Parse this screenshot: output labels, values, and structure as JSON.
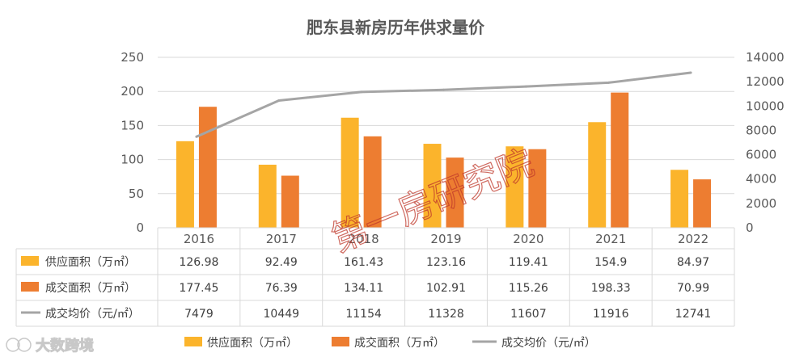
{
  "chart_data": {
    "type": "bar+line",
    "title": "肥东县新房历年供求量价",
    "categories": [
      "2016",
      "2017",
      "2018",
      "2019",
      "2020",
      "2021",
      "2022"
    ],
    "series": [
      {
        "name": "供应面积（万㎡）",
        "kind": "bar",
        "axis": "left",
        "color": "#FBB42C",
        "values": [
          126.98,
          92.49,
          161.43,
          123.16,
          119.41,
          154.9,
          84.97
        ],
        "labels": [
          "126.98",
          "92.49",
          "161.43",
          "123.16",
          "119.41",
          "154.9",
          "84.97"
        ]
      },
      {
        "name": "成交面积（万㎡）",
        "kind": "bar",
        "axis": "left",
        "color": "#ED7D31",
        "values": [
          177.45,
          76.39,
          134.11,
          102.91,
          115.26,
          198.33,
          70.99
        ],
        "labels": [
          "177.45",
          "76.39",
          "134.11",
          "102.91",
          "115.26",
          "198.33",
          "70.99"
        ]
      },
      {
        "name": "成交均价（元/㎡）",
        "kind": "line",
        "axis": "right",
        "color": "#A5A5A5",
        "values": [
          7479,
          10449,
          11154,
          11328,
          11607,
          11916,
          12741
        ],
        "labels": [
          "7479",
          "10449",
          "11154",
          "11328",
          "11607",
          "11916",
          "12741"
        ]
      }
    ],
    "y_left": {
      "min": 0,
      "max": 250,
      "ticks": [
        0,
        50,
        100,
        150,
        200,
        250
      ]
    },
    "y_right": {
      "min": 0,
      "max": 14000,
      "ticks": [
        0,
        2000,
        4000,
        6000,
        8000,
        10000,
        12000,
        14000
      ]
    },
    "grid": true,
    "legend_position": "bottom",
    "data_table": true
  },
  "watermark": "第一房研究院",
  "brand": "大数跨境"
}
